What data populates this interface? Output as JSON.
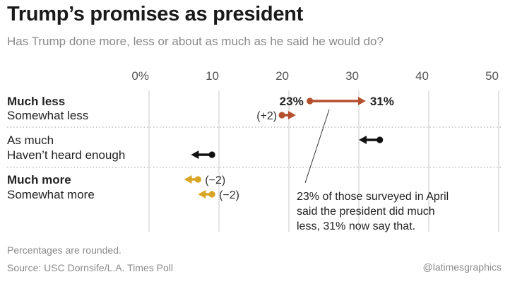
{
  "header": {
    "title": "Trump’s promises as president",
    "subtitle": "Has Trump done more, less or about as much as he said he would do?"
  },
  "colors": {
    "much_less": "#b5502f",
    "as_much": "#111111",
    "much_more": "#d9a526",
    "grid": "#c8c8c8",
    "text": "#222222",
    "muted": "#8a8a8a"
  },
  "chart_data": {
    "type": "dot-arrow",
    "title": "Trump’s promises as president",
    "xlim": [
      0,
      50
    ],
    "x_ticks": [
      {
        "value": 0,
        "label": "0%"
      },
      {
        "value": 10,
        "label": "10"
      },
      {
        "value": 20,
        "label": "20"
      },
      {
        "value": 30,
        "label": "30"
      },
      {
        "value": 40,
        "label": "40"
      },
      {
        "value": 50,
        "label": "50"
      }
    ],
    "groups": [
      {
        "color_key": "much_less",
        "rows": [
          {
            "label": "Much less",
            "bold": true,
            "april": 23,
            "now": 31,
            "start_label": "23%",
            "end_label": "31%",
            "change_label": ""
          },
          {
            "label": "Somewhat less",
            "bold": false,
            "april": 19,
            "now": 21,
            "start_label": "",
            "end_label": "",
            "change_label": "(+2)"
          }
        ]
      },
      {
        "color_key": "as_much",
        "rows": [
          {
            "label": "As much",
            "bold": false,
            "april": 33,
            "now": 30,
            "start_label": "",
            "end_label": "",
            "change_label": ""
          },
          {
            "label": "Haven’t heard enough",
            "bold": false,
            "april": 9,
            "now": 6,
            "start_label": "",
            "end_label": "",
            "change_label": ""
          }
        ]
      },
      {
        "color_key": "much_more",
        "rows": [
          {
            "label": "Much more",
            "bold": true,
            "april": 7,
            "now": 5,
            "start_label": "",
            "end_label": "",
            "change_label": "(−2)"
          },
          {
            "label": "Somewhat more",
            "bold": false,
            "april": 9,
            "now": 7,
            "start_label": "",
            "end_label": "",
            "change_label": "(−2)"
          }
        ]
      }
    ],
    "annotation": [
      "23% of those surveyed in April",
      "said the president did much",
      "less, 31% now say that."
    ]
  },
  "footer": {
    "note": "Percentages are rounded.",
    "source": "Source: USC Dornsife/L.A. Times Poll",
    "credit": "@latimesgraphics"
  }
}
